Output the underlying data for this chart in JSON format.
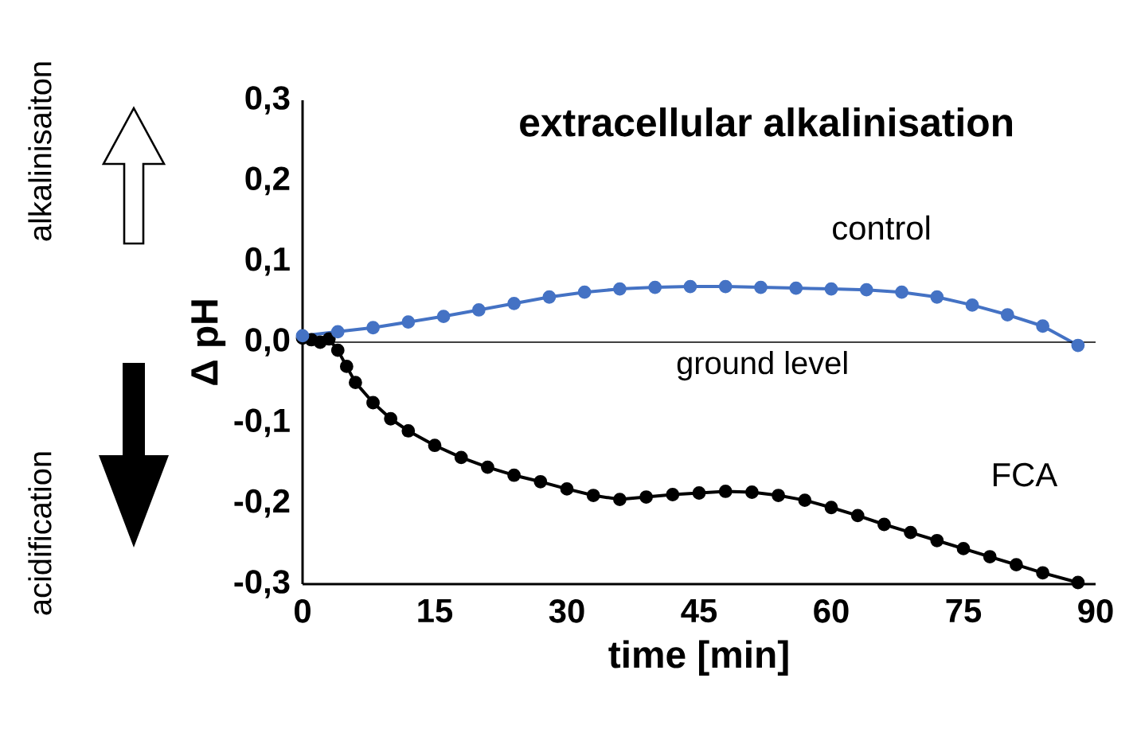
{
  "chart_data": {
    "type": "line",
    "title": "extracellular alkalinisation",
    "xlabel": "time [min]",
    "ylabel": "Δ pH",
    "annotations": [
      "alkalinisaiton",
      "acidification"
    ],
    "series": [
      {
        "name": "control",
        "color": "#4472c4",
        "x": [
          0,
          4,
          8,
          12,
          16,
          20,
          24,
          28,
          32,
          36,
          40,
          44,
          48,
          52,
          56,
          60,
          64,
          68,
          72,
          76,
          80,
          84,
          88
        ],
        "values": [
          0.008,
          0.013,
          0.018,
          0.025,
          0.032,
          0.04,
          0.048,
          0.056,
          0.062,
          0.066,
          0.068,
          0.069,
          0.069,
          0.068,
          0.067,
          0.066,
          0.065,
          0.062,
          0.056,
          0.046,
          0.034,
          0.02,
          -0.004
        ]
      },
      {
        "name": "FCA",
        "color": "#000000",
        "x": [
          0,
          1,
          2,
          3,
          4,
          5,
          6,
          8,
          10,
          12,
          15,
          18,
          21,
          24,
          27,
          30,
          33,
          36,
          39,
          42,
          45,
          48,
          51,
          54,
          57,
          60,
          63,
          66,
          69,
          72,
          75,
          78,
          81,
          84,
          88
        ],
        "values": [
          0.005,
          0.003,
          0.0,
          0.004,
          -0.01,
          -0.03,
          -0.05,
          -0.075,
          -0.095,
          -0.11,
          -0.128,
          -0.143,
          -0.155,
          -0.165,
          -0.173,
          -0.182,
          -0.19,
          -0.195,
          -0.192,
          -0.189,
          -0.187,
          -0.185,
          -0.186,
          -0.19,
          -0.196,
          -0.205,
          -0.215,
          -0.226,
          -0.236,
          -0.246,
          -0.256,
          -0.266,
          -0.276,
          -0.286,
          -0.298
        ]
      }
    ],
    "xlim": [
      0,
      90
    ],
    "xticks": [
      0,
      15,
      30,
      45,
      60,
      75,
      90
    ],
    "ylim": [
      -0.3,
      0.3
    ],
    "yticks": [
      {
        "value": -0.3,
        "label": "-0,3"
      },
      {
        "value": -0.2,
        "label": "-0,2"
      },
      {
        "value": -0.1,
        "label": "-0,1"
      },
      {
        "value": 0.0,
        "label": "0,0"
      },
      {
        "value": 0.1,
        "label": "0,1"
      },
      {
        "value": 0.2,
        "label": "0,2"
      },
      {
        "value": 0.3,
        "label": "0,3"
      }
    ],
    "ref_lines": [
      {
        "axis": "y",
        "value": 0,
        "label": "ground level",
        "color": "#000000"
      }
    ],
    "marker": "circle"
  }
}
